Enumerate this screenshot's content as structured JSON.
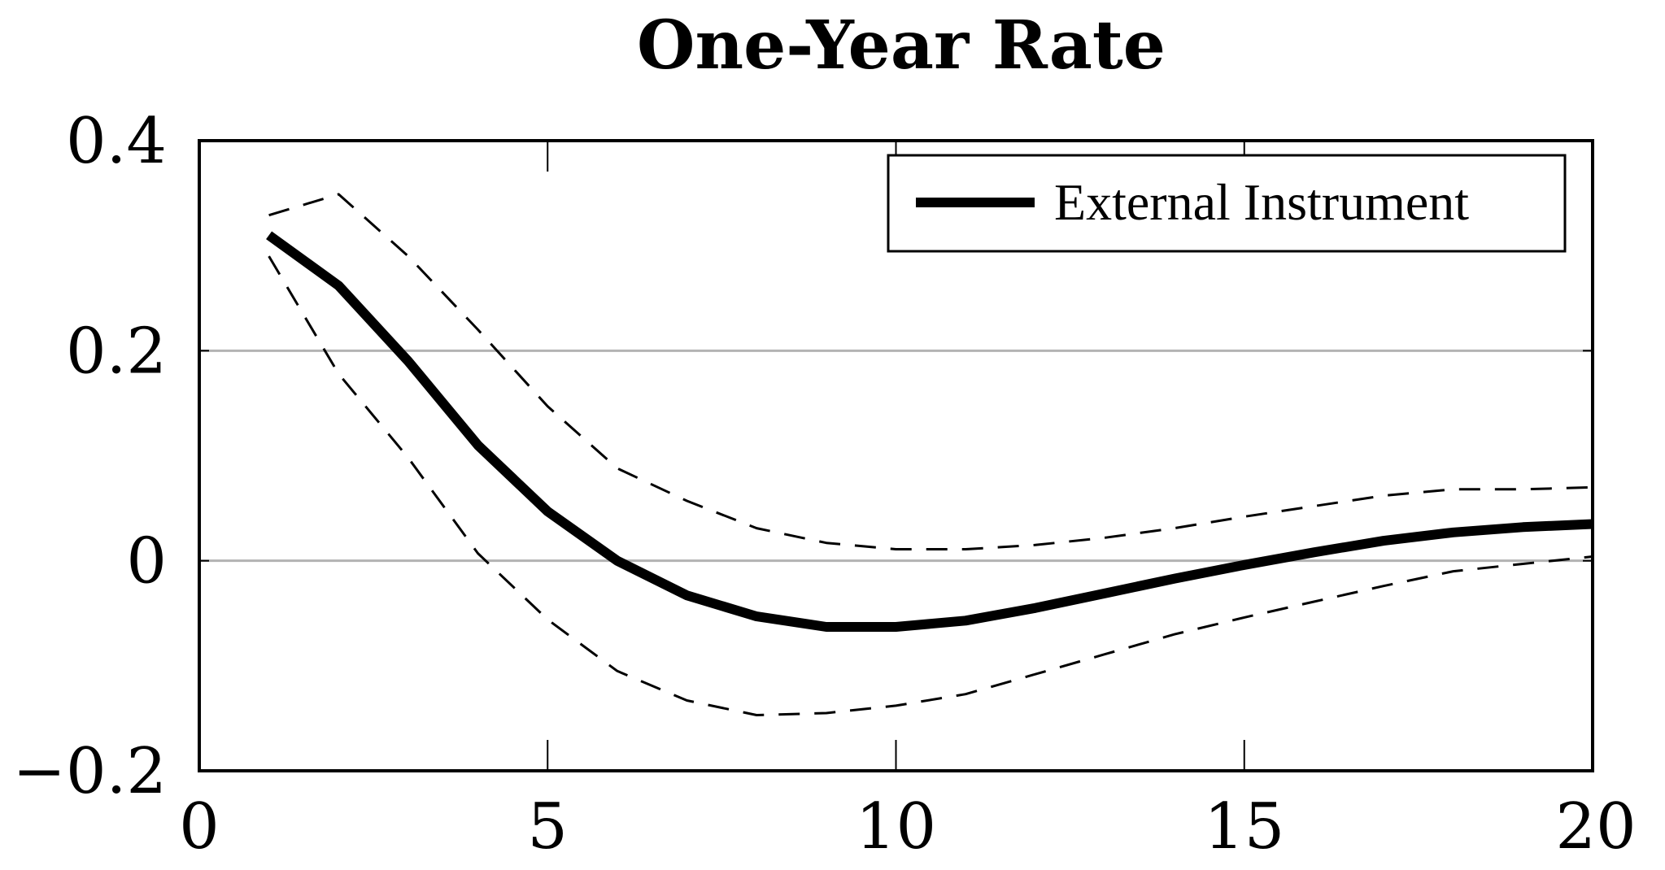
{
  "chart_data": {
    "type": "line",
    "title": "One-Year Rate",
    "xlabel": "",
    "ylabel": "",
    "xlim": [
      0,
      20
    ],
    "ylim": [
      -0.2,
      0.4
    ],
    "x_ticks": [
      0,
      5,
      10,
      15,
      20
    ],
    "x_tick_labels": [
      "0",
      "5",
      "10",
      "15",
      "20"
    ],
    "y_ticks": [
      -0.2,
      0,
      0.2,
      0.4
    ],
    "y_tick_labels": [
      "−0.2",
      "0",
      "0.2",
      "0.4"
    ],
    "grid": {
      "horizontal": true,
      "vertical": false
    },
    "legend": {
      "position": "top-right",
      "entries": [
        "External Instrument"
      ]
    },
    "x": [
      1,
      2,
      3,
      4,
      5,
      6,
      7,
      8,
      9,
      10,
      11,
      12,
      13,
      14,
      15,
      16,
      17,
      18,
      19,
      20
    ],
    "series": [
      {
        "name": "External Instrument",
        "style": "solid",
        "values": [
          0.31,
          0.262,
          0.19,
          0.11,
          0.047,
          0.0,
          -0.033,
          -0.053,
          -0.063,
          -0.063,
          -0.057,
          -0.045,
          -0.031,
          -0.017,
          -0.004,
          0.008,
          0.019,
          0.027,
          0.032,
          0.035
        ]
      },
      {
        "style": "dashed",
        "role": "upper band",
        "values": [
          0.329,
          0.349,
          0.29,
          0.22,
          0.147,
          0.088,
          0.057,
          0.031,
          0.017,
          0.011,
          0.011,
          0.015,
          0.022,
          0.031,
          0.042,
          0.052,
          0.062,
          0.068,
          0.068,
          0.07
        ]
      },
      {
        "style": "dashed",
        "role": "lower band",
        "values": [
          0.29,
          0.178,
          0.098,
          0.007,
          -0.056,
          -0.105,
          -0.133,
          -0.147,
          -0.145,
          -0.138,
          -0.127,
          -0.108,
          -0.089,
          -0.07,
          -0.054,
          -0.039,
          -0.024,
          -0.01,
          -0.003,
          0.004
        ]
      }
    ],
    "colors": {
      "line": "#000000",
      "grid": "#b3b3b3",
      "frame": "#000000"
    }
  }
}
